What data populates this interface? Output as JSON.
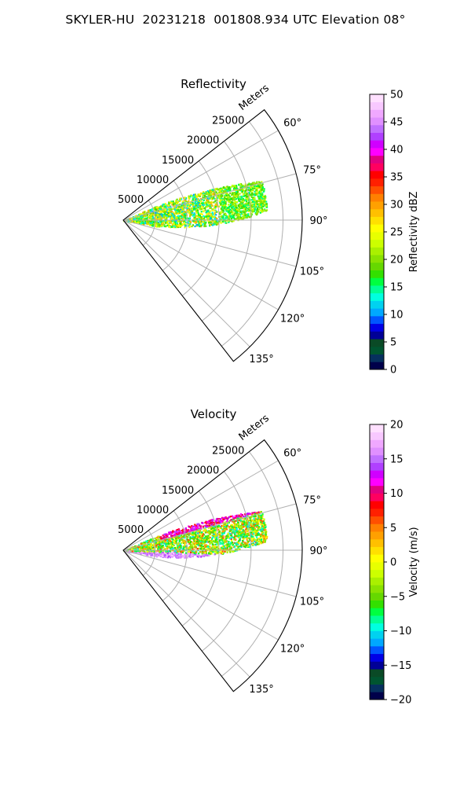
{
  "title": "SKYLER-HU  20231218  001808.934 UTC Elevation 08°",
  "chart_data": [
    {
      "type": "polar-sector",
      "title": "Reflectivity",
      "radial_label": "Meters",
      "radial_ticks": [
        5000,
        10000,
        15000,
        20000,
        25000
      ],
      "radial_tick_labels": [
        "5000",
        "10000",
        "15000",
        "20000",
        "25000"
      ],
      "rmax": 28000,
      "theta_range_deg": [
        52,
        142
      ],
      "theta_ticks_deg": [
        60,
        75,
        90,
        105,
        120,
        135
      ],
      "theta_tick_labels": [
        "60°",
        "75°",
        "90°",
        "105°",
        "120°",
        "135°"
      ],
      "grid": true,
      "colorbar": {
        "label": "Reflectivity dBZ",
        "min": 0,
        "max": 50,
        "ticks": [
          0,
          5,
          10,
          15,
          20,
          25,
          30,
          35,
          40,
          45,
          50
        ],
        "tick_labels": [
          "0",
          "5",
          "10",
          "15",
          "20",
          "25",
          "30",
          "35",
          "40",
          "45",
          "50"
        ],
        "colors": [
          "#00004a",
          "#06305e",
          "#005530",
          "#0a4a26",
          "#000096",
          "#0000e6",
          "#0055ff",
          "#00a8ff",
          "#00d2f0",
          "#00ffe0",
          "#00ff95",
          "#00ff40",
          "#33e000",
          "#66d800",
          "#8ae200",
          "#aaf000",
          "#ccff00",
          "#e8ff00",
          "#ffff00",
          "#ffe000",
          "#ffc000",
          "#ffa000",
          "#ff8000",
          "#ff5000",
          "#ff2000",
          "#ff0000",
          "#ff0060",
          "#e00080",
          "#ff00ff",
          "#d000ff",
          "#b040ff",
          "#c070ff",
          "#e090ff",
          "#f0a8ff",
          "#f8c8ff",
          "#ffe0ff"
        ]
      },
      "echo": {
        "region_theta_deg": [
          66,
          100
        ],
        "region_range_m": [
          0,
          22500
        ],
        "dominant_values": [
          13,
          18,
          22,
          27
        ]
      }
    },
    {
      "type": "polar-sector",
      "title": "Velocity",
      "radial_label": "Meters",
      "radial_ticks": [
        5000,
        10000,
        15000,
        20000,
        25000
      ],
      "radial_tick_labels": [
        "5000",
        "10000",
        "15000",
        "20000",
        "25000"
      ],
      "rmax": 28000,
      "theta_range_deg": [
        52,
        142
      ],
      "theta_ticks_deg": [
        60,
        75,
        90,
        105,
        120,
        135
      ],
      "theta_tick_labels": [
        "60°",
        "75°",
        "90°",
        "105°",
        "120°",
        "135°"
      ],
      "grid": true,
      "colorbar": {
        "label": "Velocity (m/s)",
        "min": -20,
        "max": 20,
        "ticks": [
          -20,
          -15,
          -10,
          -5,
          0,
          5,
          10,
          15,
          20
        ],
        "tick_labels": [
          "−20",
          "−15",
          "−10",
          "−5",
          "0",
          "5",
          "10",
          "15",
          "20"
        ],
        "colors": [
          "#00004a",
          "#06305e",
          "#005530",
          "#0a4a26",
          "#000096",
          "#0000e6",
          "#0055ff",
          "#00a8ff",
          "#00d2f0",
          "#00ffe0",
          "#00ff95",
          "#00ff40",
          "#33e000",
          "#66d800",
          "#8ae200",
          "#aaf000",
          "#ccff00",
          "#e8ff00",
          "#ffff00",
          "#ffe000",
          "#ffc000",
          "#ffa000",
          "#ff8000",
          "#ff5000",
          "#ff2000",
          "#ff0000",
          "#ff0060",
          "#e00080",
          "#ff00ff",
          "#d000ff",
          "#b040ff",
          "#c070ff",
          "#e090ff",
          "#f0a8ff",
          "#f8c8ff",
          "#ffe0ff"
        ]
      },
      "echo": {
        "region_theta_deg": [
          66,
          100
        ],
        "region_range_m": [
          0,
          22500
        ],
        "dominant_values": [
          -8,
          -5,
          -2,
          4
        ]
      }
    }
  ]
}
